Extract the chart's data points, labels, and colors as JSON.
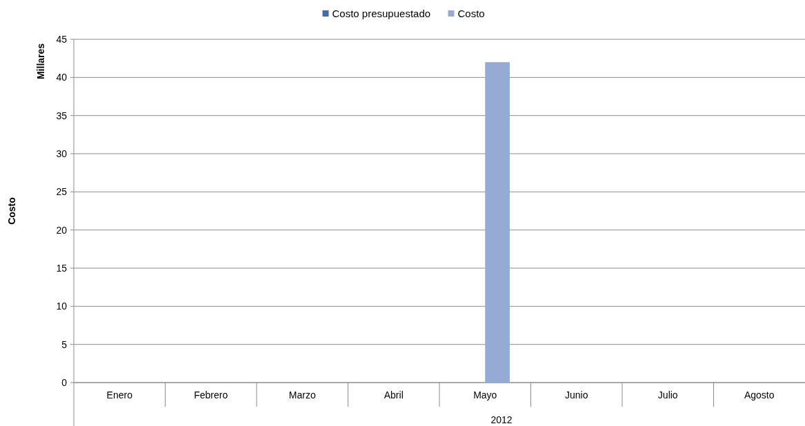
{
  "chart_data": {
    "type": "bar",
    "ylabel": "Costo",
    "xlabel": "2012",
    "annotations": [
      "Millares"
    ],
    "categories": [
      "Enero",
      "Febrero",
      "Marzo",
      "Abril",
      "Mayo",
      "Junio",
      "Julio",
      "Agosto"
    ],
    "series": [
      {
        "name": "Costo presupuestado",
        "color": "#3f6eb0",
        "values": [
          0,
          0,
          0,
          0,
          0,
          0,
          0,
          0
        ]
      },
      {
        "name": "Costo",
        "color": "#95abd3",
        "values": [
          null,
          null,
          null,
          null,
          42,
          null,
          null,
          null
        ]
      }
    ],
    "ylim": [
      0,
      45
    ],
    "yticks": [
      0,
      5,
      10,
      15,
      20,
      25,
      30,
      35,
      40,
      45
    ],
    "grid": "y",
    "legend": "top"
  }
}
